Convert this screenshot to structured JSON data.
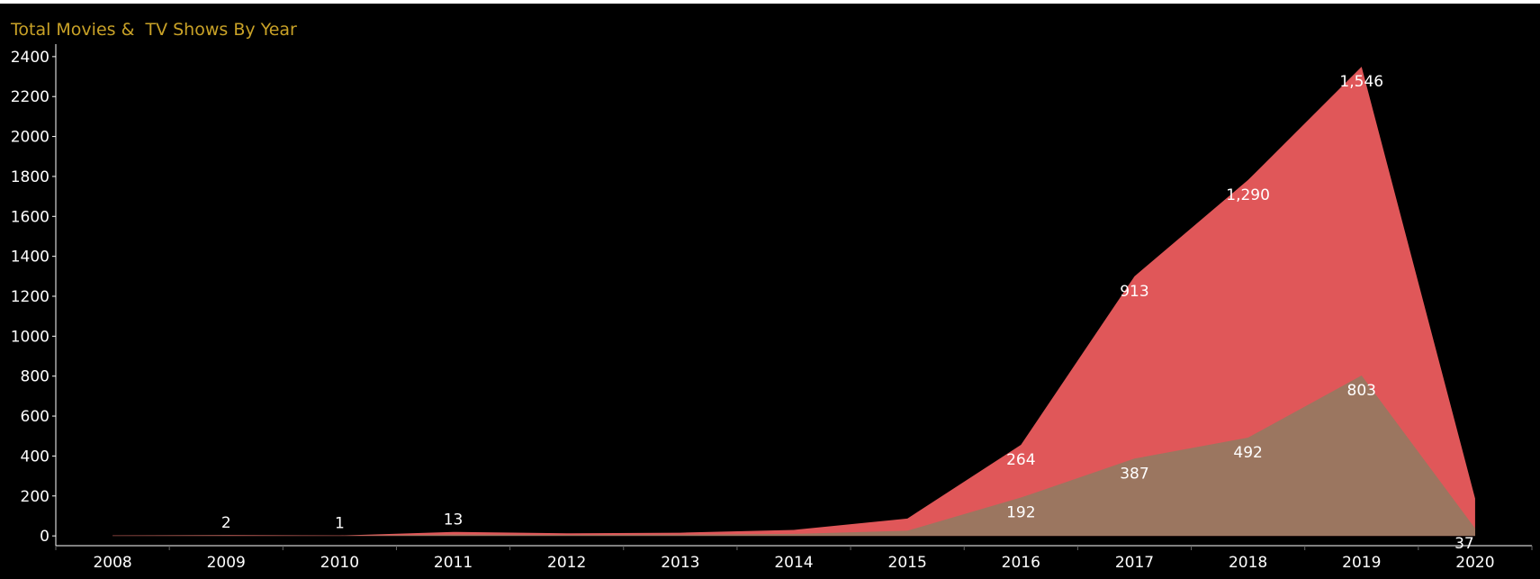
{
  "chart_data": {
    "type": "area",
    "title": "Total Movies &  TV Shows By Year",
    "xlabel": "",
    "ylabel": "",
    "categories": [
      "2008",
      "2009",
      "2010",
      "2011",
      "2012",
      "2013",
      "2014",
      "2015",
      "2016",
      "2017",
      "2018",
      "2019",
      "2020"
    ],
    "ylim": [
      -40,
      2440
    ],
    "yticks": [
      0,
      200,
      400,
      600,
      800,
      1000,
      1200,
      1400,
      1600,
      1800,
      2000,
      2200,
      2400
    ],
    "series": [
      {
        "name": "",
        "color": "#9b7660",
        "values": [
          1,
          2,
          1,
          7,
          5,
          6,
          10,
          26,
          192,
          387,
          492,
          803,
          37
        ]
      },
      {
        "name": "",
        "color": "#e05759",
        "values": [
          1,
          2,
          1,
          13,
          8,
          10,
          20,
          61,
          264,
          913,
          1290,
          1546,
          150
        ]
      }
    ],
    "data_labels": [
      {
        "series": 1,
        "index": 1,
        "text": "2"
      },
      {
        "series": 1,
        "index": 2,
        "text": "1"
      },
      {
        "series": 1,
        "index": 3,
        "text": "13"
      },
      {
        "series": 1,
        "index": 8,
        "text": "264"
      },
      {
        "series": 1,
        "index": 9,
        "text": "913"
      },
      {
        "series": 1,
        "index": 10,
        "text": "1,290"
      },
      {
        "series": 1,
        "index": 11,
        "text": "1,546"
      },
      {
        "series": 0,
        "index": 8,
        "text": "192"
      },
      {
        "series": 0,
        "index": 9,
        "text": "387"
      },
      {
        "series": 0,
        "index": 10,
        "text": "492"
      },
      {
        "series": 0,
        "index": 11,
        "text": "803"
      },
      {
        "series": 0,
        "index": 12,
        "text": "37"
      }
    ],
    "grid": false,
    "legend": "none",
    "colors": {
      "background": "#000000",
      "title": "#c9a227",
      "axis": "#ffffff"
    }
  }
}
